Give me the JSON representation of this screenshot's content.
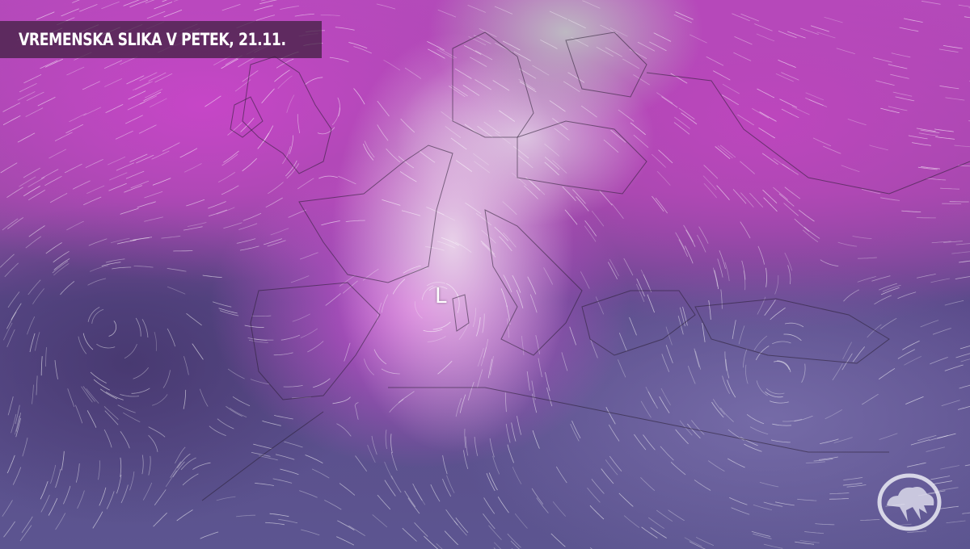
{
  "title": "VREMENSKA SLIKA V PETEK, 21.11.",
  "pressure_centers": [
    {
      "label": "L"
    }
  ],
  "colors": {
    "precip_heavy": "#c850c8",
    "precip_light": "#ebd7eb",
    "clear_dark": "#4a3f78",
    "clear_light": "#7d78b0",
    "title_bg": "#3c1e3c"
  },
  "logo": {
    "icon": "cloud-lightning-logo-icon"
  }
}
